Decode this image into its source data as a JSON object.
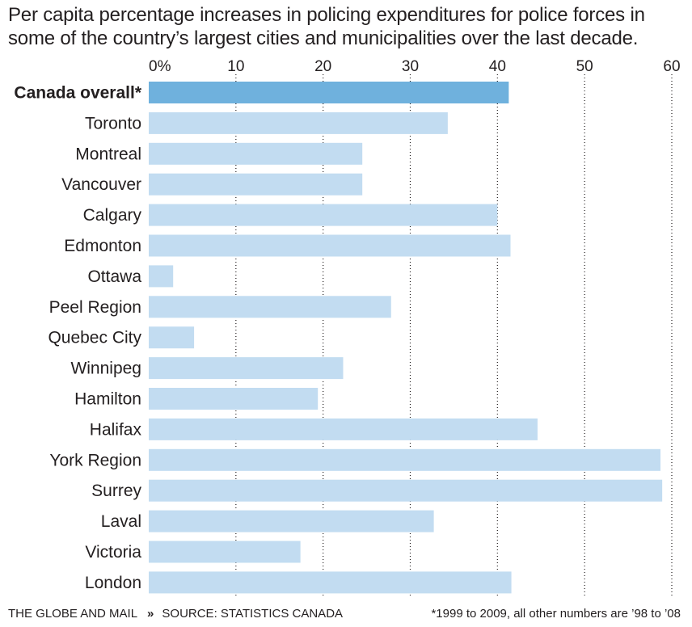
{
  "title": "Per capita percentage increases in policing expenditures for police forces in some of the country’s largest cities and municipalities over the last decade.",
  "footer": {
    "publisher": "THE GLOBE AND MAIL",
    "separator": "»",
    "source": "SOURCE: STATISTICS CANADA",
    "note": "*1999 to 2009, all other numbers are ’98 to ’08"
  },
  "colors": {
    "highlight_bar": "#6fb1dd",
    "bar": "#c2dcf1",
    "gridline": "#231f20",
    "text": "#231f20"
  },
  "chart_data": {
    "type": "bar",
    "orientation": "horizontal",
    "title": "Per capita percentage increases in policing expenditures for police forces in some of the country’s largest cities and municipalities over the last decade.",
    "xlim": [
      0,
      60
    ],
    "ticks": [
      0,
      10,
      20,
      30,
      40,
      50,
      60
    ],
    "tick_labels": [
      "0%",
      "10",
      "20",
      "30",
      "40",
      "50",
      "60"
    ],
    "tick_position": "top",
    "grid": "dotted vertical at 10, 20, 30, 40, 50, 60",
    "categories": [
      "Canada overall*",
      "Toronto",
      "Montreal",
      "Vancouver",
      "Calgary",
      "Edmonton",
      "Ottawa",
      "Peel Region",
      "Quebec City",
      "Winnipeg",
      "Hamilton",
      "Halifax",
      "York Region",
      "Surrey",
      "Laval",
      "Victoria",
      "London"
    ],
    "values": [
      41.3,
      34.3,
      24.5,
      24.5,
      40,
      41.5,
      2.8,
      27.8,
      5.2,
      22.3,
      19.4,
      44.6,
      58.7,
      58.9,
      32.7,
      17.4,
      41.6
    ],
    "highlight": [
      "Canada overall*"
    ]
  }
}
